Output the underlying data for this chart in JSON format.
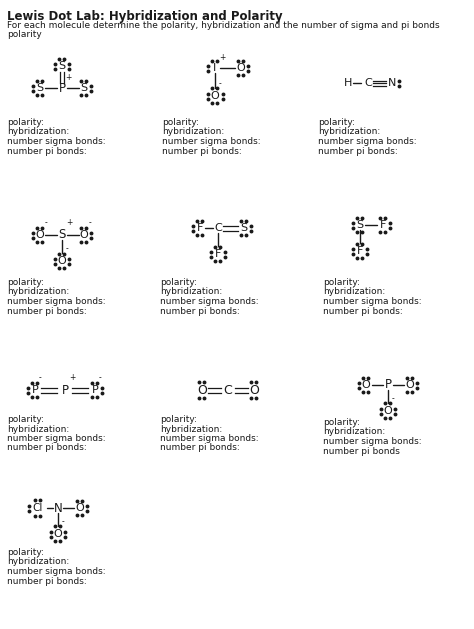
{
  "title": "Lewis Dot Lab: Hybridization and Polarity",
  "bg_color": "#ffffff",
  "font_color": "#1a1a1a",
  "label_lines": [
    "polarity:",
    "hybridization:",
    "number sigma bonds:",
    "number pi bonds:"
  ]
}
